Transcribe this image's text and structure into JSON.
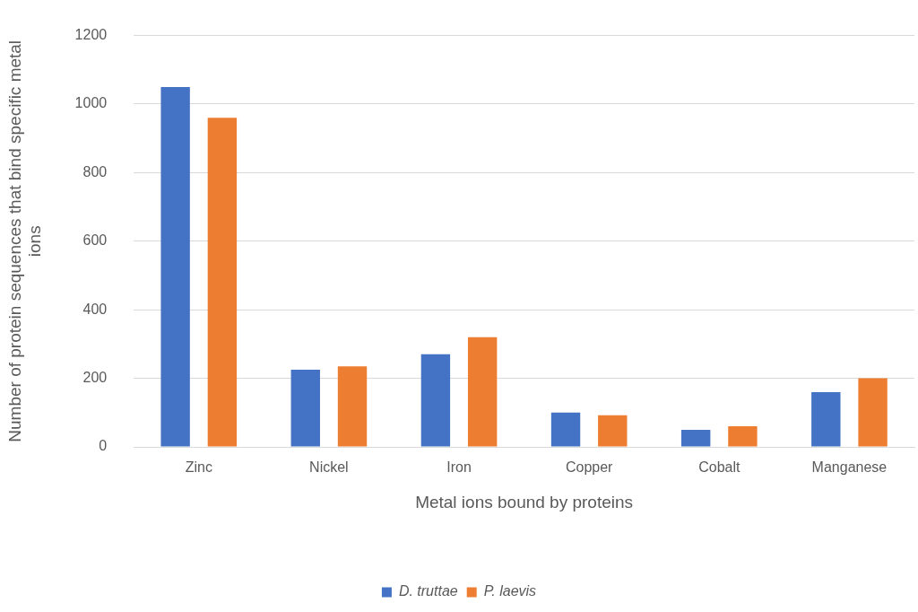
{
  "chart_data": {
    "type": "bar",
    "xlabel": "Metal ions bound by proteins",
    "ylabel": "Number of protein sequences that bind specific metal ions",
    "categories": [
      "Zinc",
      "Nickel",
      "Iron",
      "Copper",
      "Cobalt",
      "Manganese"
    ],
    "series": [
      {
        "name": "D. truttae",
        "color": "#4472c4",
        "values": [
          1050,
          225,
          270,
          100,
          50,
          160
        ]
      },
      {
        "name": "P. laevis",
        "color": "#ed7d31",
        "values": [
          960,
          235,
          320,
          92,
          60,
          200
        ]
      }
    ],
    "ylim": [
      0,
      1200
    ],
    "yticks": [
      0,
      200,
      400,
      600,
      800,
      1000,
      1200
    ],
    "grid": "y",
    "legend": "bottom"
  }
}
